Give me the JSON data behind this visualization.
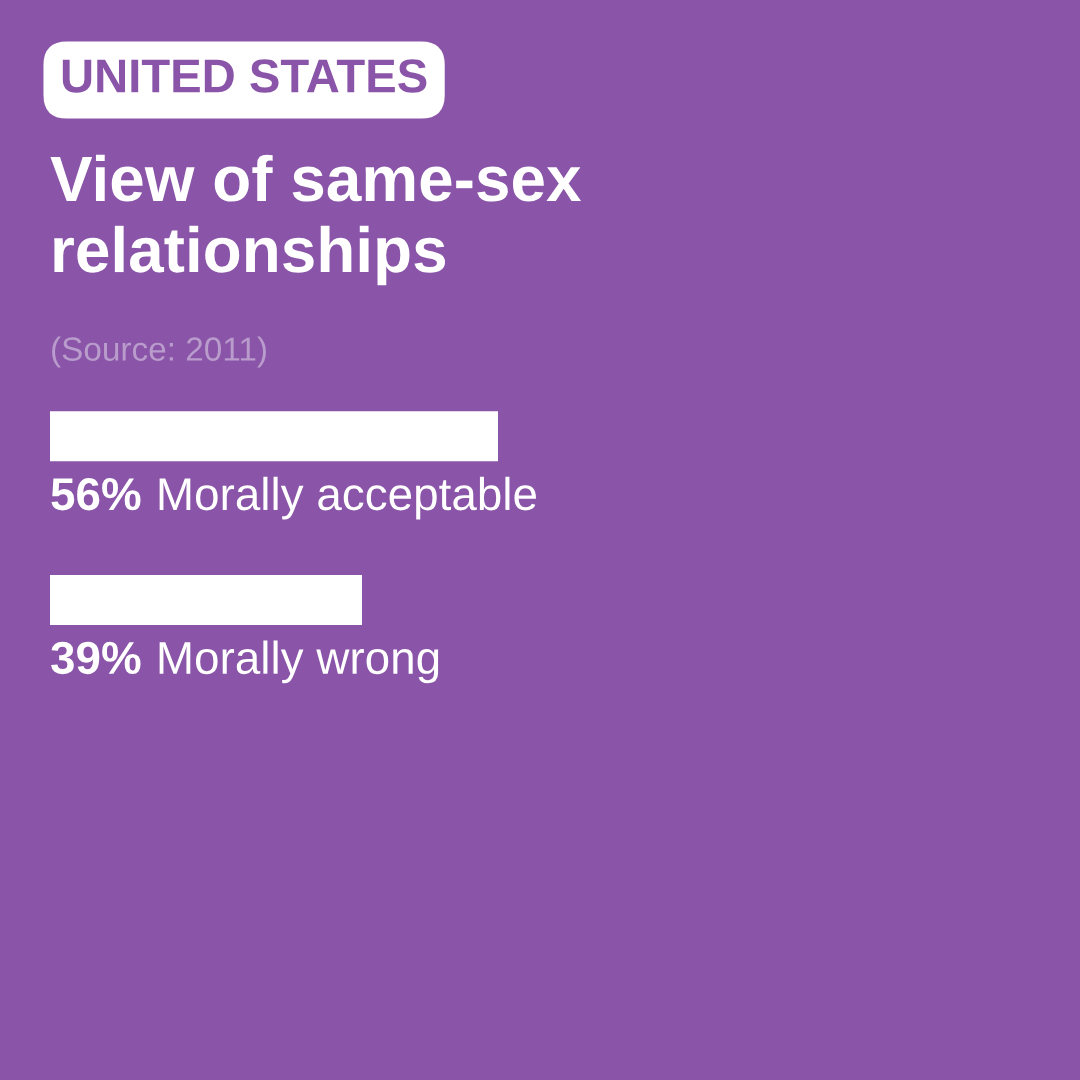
{
  "chart_data": {
    "type": "bar",
    "orientation": "horizontal",
    "title": "View of same-sex\nrelationships",
    "annotations": [
      "UNITED STATES",
      "(Source: 2011)"
    ],
    "categories": [
      "Morally acceptable",
      "Morally wrong"
    ],
    "values": [
      56,
      39
    ],
    "value_labels": [
      "56%",
      "39%"
    ],
    "color": "#ffffff",
    "tick_labels": false
  }
}
